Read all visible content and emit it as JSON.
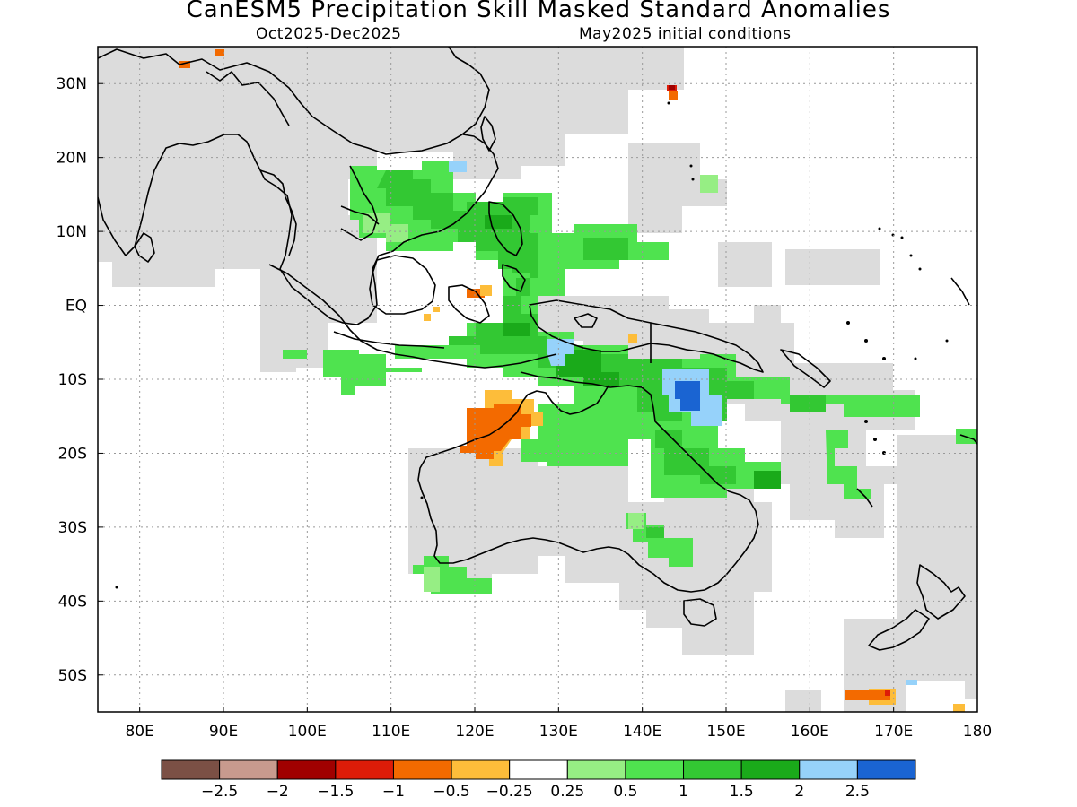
{
  "header": {
    "title": "CanESM5 Precipitation Skill Masked Standard Anomalies",
    "period": "Oct2025-Dec2025",
    "init": "May2025 initial conditions"
  },
  "axes": {
    "lat_labels": [
      {
        "lat": 30,
        "text": "30N"
      },
      {
        "lat": 20,
        "text": "20N"
      },
      {
        "lat": 10,
        "text": "10N"
      },
      {
        "lat": 0,
        "text": "EQ"
      },
      {
        "lat": -10,
        "text": "10S"
      },
      {
        "lat": -20,
        "text": "20S"
      },
      {
        "lat": -30,
        "text": "30S"
      },
      {
        "lat": -40,
        "text": "40S"
      },
      {
        "lat": -50,
        "text": "50S"
      }
    ],
    "lon_labels": [
      {
        "lon": 80,
        "text": "80E"
      },
      {
        "lon": 90,
        "text": "90E"
      },
      {
        "lon": 100,
        "text": "100E"
      },
      {
        "lon": 110,
        "text": "110E"
      },
      {
        "lon": 120,
        "text": "120E"
      },
      {
        "lon": 130,
        "text": "130E"
      },
      {
        "lon": 140,
        "text": "140E"
      },
      {
        "lon": 150,
        "text": "150E"
      },
      {
        "lon": 160,
        "text": "160E"
      },
      {
        "lon": 170,
        "text": "170E"
      },
      {
        "lon": 180,
        "text": "180"
      }
    ],
    "extent": {
      "lon_min": 75,
      "lon_max": 180,
      "lat_min": -55,
      "lat_max": 35
    }
  },
  "colorbar": {
    "colors": [
      "#7b5045",
      "#c89a8e",
      "#a00000",
      "#dd1c08",
      "#f36a00",
      "#fdbd3a",
      "#ffffff",
      "#96ee84",
      "#4fe34f",
      "#33c833",
      "#1aaa1a",
      "#96d2fa",
      "#1a64d2"
    ],
    "labels": [
      "-2.5",
      "-2",
      "-1.5",
      "-1",
      "-0.5",
      "-0.25",
      "0.25",
      "0.5",
      "1",
      "1.5",
      "2",
      "2.5"
    ]
  },
  "legend_colors": {
    "masked_gray": "#dcdcdc",
    "coast": "#000000"
  }
}
